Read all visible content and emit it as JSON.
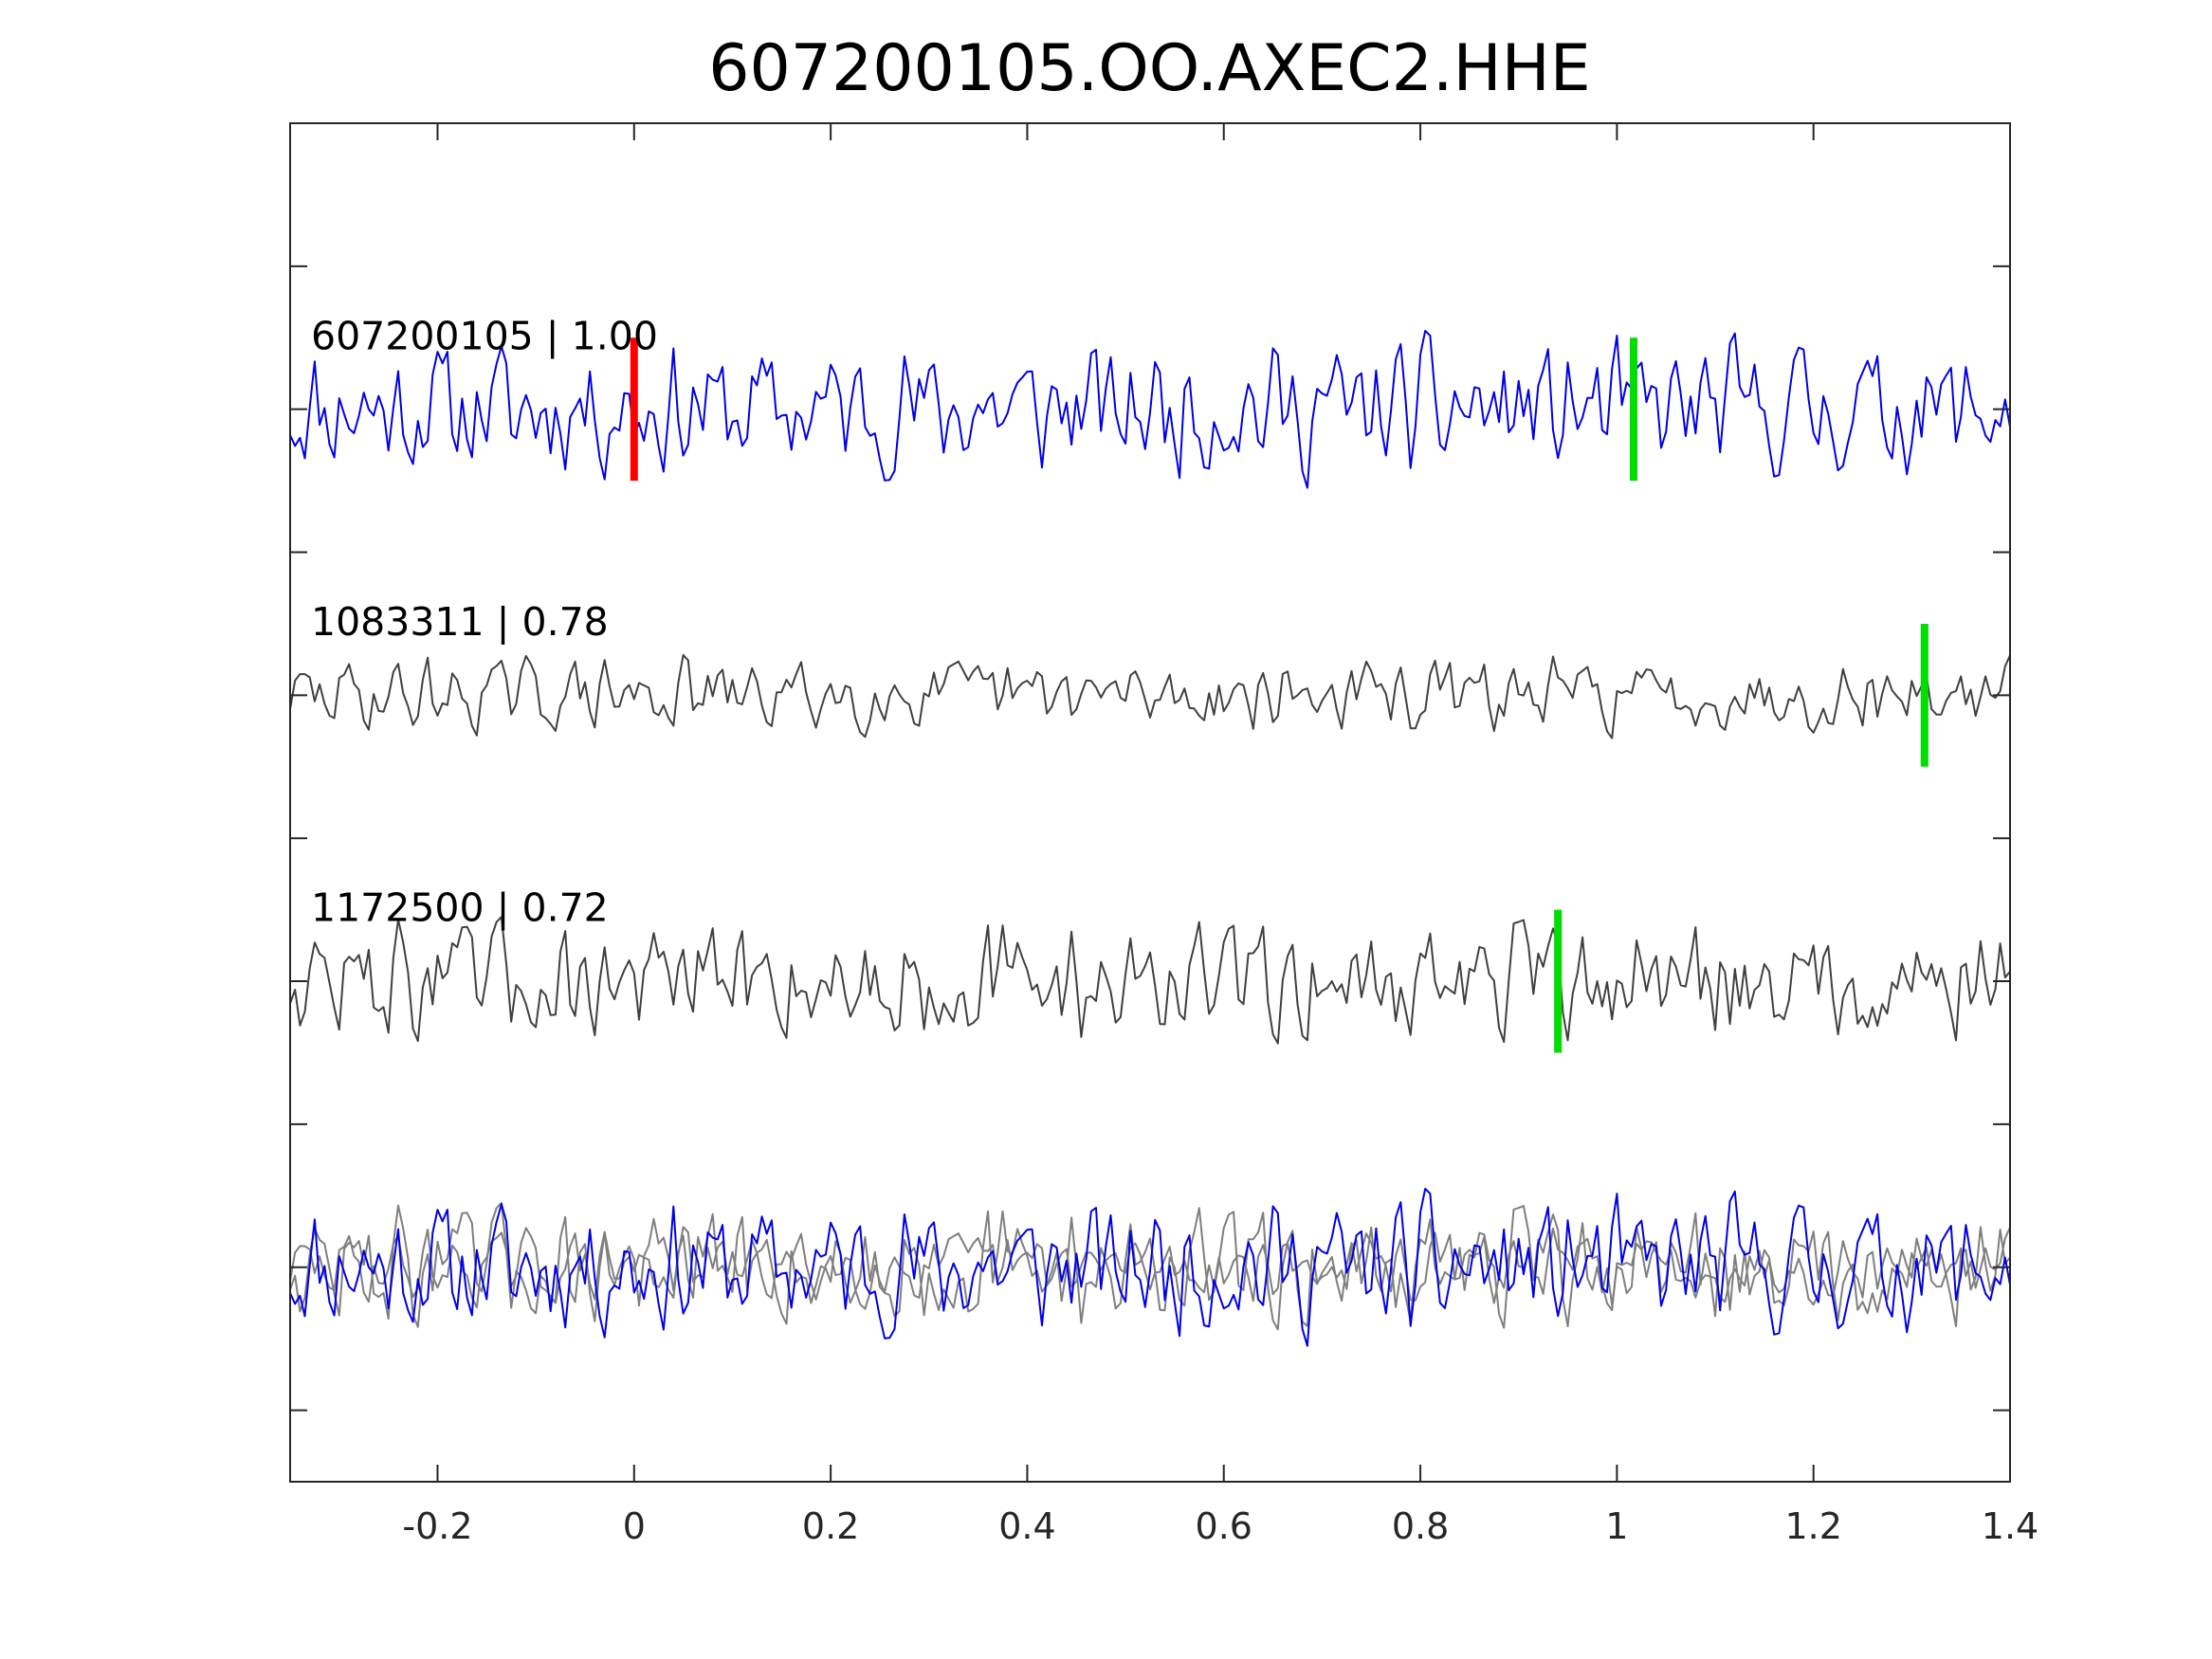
{
  "chart_data": {
    "type": "line",
    "title": "607200105.OO.AXEC2.HHE",
    "xlabel": "",
    "ylabel": "",
    "xlim": [
      -0.35,
      1.4
    ],
    "ylim": [
      0,
      9.5
    ],
    "x_ticks": [
      -0.2,
      0,
      0.2,
      0.4,
      0.6,
      0.8,
      1,
      1.2,
      1.4
    ],
    "x_tick_labels": [
      "-0.2",
      "0",
      "0.2",
      "0.4",
      "0.6",
      "0.8",
      "1",
      "1.2",
      "1.4"
    ],
    "y_ticks": [
      0.5,
      1.5,
      2.5,
      3.5,
      4.5,
      5.5,
      6.5,
      7.5,
      8.5
    ],
    "y_tick_labels": [],
    "grid": false,
    "colors": {
      "target": "#0000e6",
      "neighbor": "#404040",
      "overlay": "#7f7f7f",
      "pick_p": "#ff0000",
      "pick_s": "#00dd00"
    },
    "traces": [
      {
        "label": "607200105 | 1.00",
        "baseline": 7.5,
        "color": "#0000e6",
        "seed": 11,
        "amp": 0.55
      },
      {
        "label": "1083311 | 0.78",
        "baseline": 5.5,
        "color": "#404040",
        "seed": 29,
        "amp": 0.3
      },
      {
        "label": "1172500 | 0.72",
        "baseline": 3.5,
        "color": "#404040",
        "seed": 47,
        "amp": 0.45
      }
    ],
    "overlay_baseline": 1.5,
    "picks": [
      {
        "trace": 0,
        "x": 0.0,
        "color": "#ff0000"
      },
      {
        "trace": 0,
        "x": 1.017,
        "color": "#00dd00"
      },
      {
        "trace": 1,
        "x": 1.313,
        "color": "#00dd00"
      },
      {
        "trace": 2,
        "x": 0.94,
        "color": "#00dd00"
      }
    ]
  }
}
